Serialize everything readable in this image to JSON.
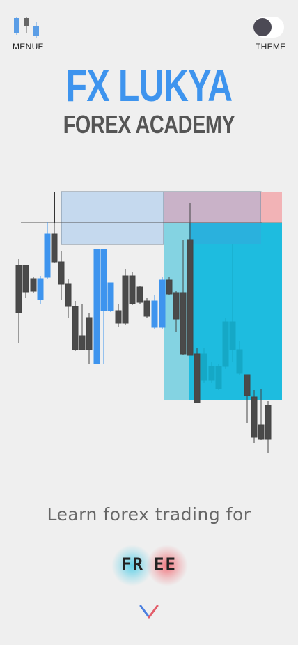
{
  "header": {
    "menu_label": "MENUE",
    "theme_label": "THEME"
  },
  "hero": {
    "title": "FX LUKYA",
    "subtitle": "FOREX ACADEMY"
  },
  "tagline": "Learn forex trading for",
  "free": {
    "part1": "FR",
    "part2": "EE"
  },
  "colors": {
    "accent_blue": "#3e94ee",
    "candle_dark": "#4a4a4a",
    "candle_blue": "#3e94ee",
    "zone_light_blue": "#c5d9ee",
    "zone_purple": "#c9b2c8",
    "zone_pink": "#f2b3b6",
    "zone_cyan": "#1ebcdf",
    "zone_cyan_light": "#84d3e2",
    "background": "#efefef"
  },
  "icons": [
    "candlestick-menu-icon",
    "theme-toggle-icon",
    "chevron-down-icon"
  ]
}
